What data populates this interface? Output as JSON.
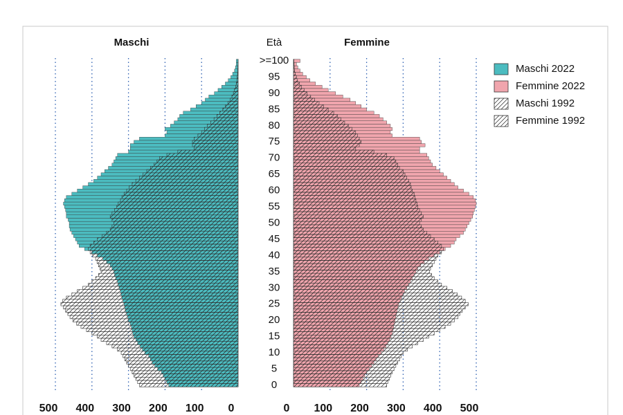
{
  "chart_data": {
    "type": "pyramid",
    "left_title": "Maschi",
    "right_title": "Femmine",
    "age_label": "Età",
    "categories": [
      "0",
      null,
      null,
      null,
      null,
      "5",
      null,
      null,
      null,
      null,
      "10",
      null,
      null,
      null,
      null,
      "15",
      null,
      null,
      null,
      null,
      "20",
      null,
      null,
      null,
      null,
      "25",
      null,
      null,
      null,
      null,
      "30",
      null,
      null,
      null,
      null,
      "35",
      null,
      null,
      null,
      null,
      "40",
      null,
      null,
      null,
      null,
      "45",
      null,
      null,
      null,
      null,
      "50",
      null,
      null,
      null,
      null,
      "55",
      null,
      null,
      null,
      null,
      "60",
      null,
      null,
      null,
      null,
      "65",
      null,
      null,
      null,
      null,
      "70",
      null,
      null,
      null,
      null,
      "75",
      null,
      null,
      null,
      null,
      "80",
      null,
      null,
      null,
      null,
      "85",
      null,
      null,
      null,
      null,
      "90",
      null,
      null,
      null,
      null,
      "95",
      null,
      null,
      null,
      null,
      ">=100"
    ],
    "xlim": [
      0,
      500
    ],
    "xticks": [
      0,
      100,
      200,
      300,
      400,
      500
    ],
    "grid": true,
    "legend": "right",
    "series": [
      {
        "name": "Maschi 2022",
        "side": "left",
        "color": "#4cbcc0",
        "pattern": "solid",
        "values": [
          190,
          195,
          200,
          205,
          210,
          220,
          228,
          235,
          240,
          245,
          255,
          262,
          268,
          275,
          280,
          285,
          288,
          290,
          292,
          295,
          300,
          302,
          305,
          308,
          310,
          312,
          315,
          318,
          320,
          322,
          325,
          328,
          330,
          335,
          338,
          340,
          345,
          350,
          360,
          370,
          385,
          400,
          420,
          435,
          440,
          445,
          450,
          455,
          460,
          462,
          462,
          465,
          470,
          470,
          472,
          475,
          478,
          475,
          470,
          455,
          440,
          425,
          410,
          395,
          385,
          375,
          365,
          355,
          345,
          340,
          335,
          330,
          300,
          295,
          295,
          285,
          270,
          200,
          195,
          200,
          185,
          175,
          165,
          160,
          150,
          130,
          115,
          100,
          90,
          80,
          65,
          55,
          45,
          35,
          27,
          20,
          15,
          10,
          7,
          5,
          5
        ]
      },
      {
        "name": "Femmine 2022",
        "side": "right",
        "color": "#f0a5ad",
        "pattern": "solid",
        "values": [
          180,
          185,
          190,
          195,
          200,
          207,
          214,
          220,
          226,
          232,
          240,
          247,
          253,
          258,
          263,
          267,
          270,
          272,
          274,
          276,
          278,
          280,
          282,
          284,
          286,
          288,
          292,
          296,
          300,
          304,
          310,
          315,
          320,
          325,
          330,
          335,
          340,
          348,
          358,
          370,
          385,
          400,
          415,
          430,
          440,
          445,
          455,
          465,
          470,
          475,
          480,
          485,
          490,
          492,
          495,
          498,
          500,
          498,
          492,
          480,
          465,
          450,
          440,
          430,
          420,
          410,
          400,
          390,
          380,
          375,
          370,
          365,
          345,
          345,
          360,
          350,
          345,
          270,
          265,
          270,
          265,
          255,
          245,
          235,
          220,
          200,
          185,
          170,
          155,
          135,
          115,
          95,
          78,
          60,
          45,
          35,
          25,
          18,
          12,
          8,
          18
        ]
      },
      {
        "name": "Maschi 1992",
        "side": "left",
        "color": "#ffffff",
        "pattern": "hatch",
        "values": [
          270,
          275,
          280,
          285,
          290,
          295,
          300,
          305,
          310,
          315,
          320,
          330,
          345,
          360,
          375,
          385,
          400,
          415,
          430,
          442,
          452,
          460,
          466,
          472,
          478,
          485,
          480,
          470,
          455,
          440,
          425,
          410,
          400,
          390,
          382,
          375,
          378,
          382,
          386,
          390,
          398,
          405,
          410,
          405,
          395,
          385,
          372,
          360,
          350,
          345,
          340,
          345,
          350,
          345,
          338,
          332,
          328,
          322,
          318,
          312,
          305,
          298,
          290,
          280,
          270,
          260,
          250,
          240,
          230,
          222,
          215,
          195,
          165,
          120,
          125,
          125,
          120,
          110,
          100,
          92,
          84,
          75,
          66,
          58,
          50,
          42,
          35,
          28,
          22,
          17,
          13,
          10,
          7,
          5,
          3.5,
          2.5,
          1.5,
          1,
          0.7,
          0.4,
          0.3
        ]
      },
      {
        "name": "Femmine 1992",
        "side": "right",
        "color": "#ffffff",
        "pattern": "hatch",
        "values": [
          255,
          258,
          262,
          266,
          270,
          275,
          280,
          285,
          290,
          295,
          300,
          312,
          325,
          340,
          355,
          370,
          385,
          400,
          415,
          430,
          440,
          450,
          455,
          462,
          470,
          478,
          470,
          460,
          448,
          435,
          420,
          405,
          395,
          385,
          378,
          372,
          375,
          380,
          385,
          390,
          395,
          405,
          410,
          405,
          395,
          385,
          375,
          365,
          355,
          350,
          345,
          350,
          355,
          350,
          345,
          340,
          338,
          335,
          332,
          330,
          325,
          322,
          320,
          315,
          310,
          305,
          300,
          290,
          285,
          280,
          275,
          255,
          220,
          170,
          180,
          185,
          180,
          175,
          170,
          160,
          150,
          140,
          130,
          120,
          110,
          95,
          82,
          70,
          58,
          47,
          37,
          29,
          22,
          16,
          11,
          8,
          5,
          3,
          2,
          1.5,
          1
        ]
      }
    ]
  }
}
